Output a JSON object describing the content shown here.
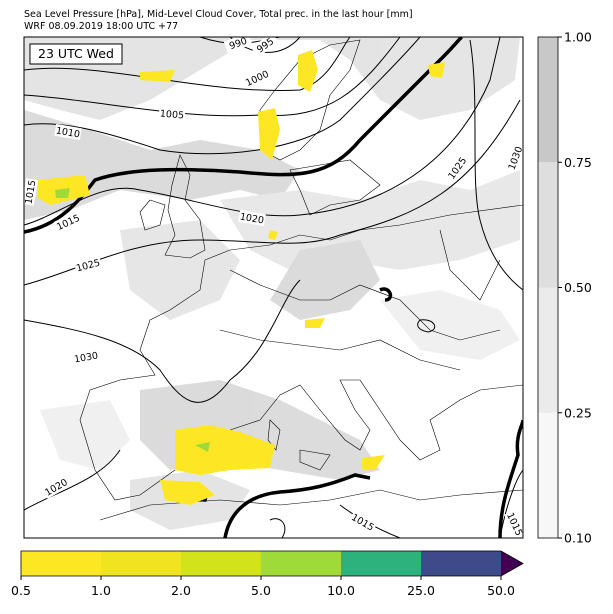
{
  "title": "Sea Level Pressure [hPa], Mid-Level Cloud Cover, Total prec. in the last hour [mm]",
  "subtitle": "WRF 08.09.2019 18:00 UTC +77",
  "time_label": "23 UTC Wed",
  "isobar_labels": [
    990,
    995,
    1000,
    1005,
    1010,
    1015,
    1015,
    1020,
    1025,
    1025,
    1030,
    1030,
    1020,
    1015,
    1015
  ],
  "cloud_colorbar": {
    "ticks": [
      {
        "value": 0.1,
        "label": "0.10"
      },
      {
        "value": 0.25,
        "label": "0.25"
      },
      {
        "value": 0.5,
        "label": "0.50"
      },
      {
        "value": 0.75,
        "label": "0.75"
      },
      {
        "value": 1,
        "label": "1.00"
      }
    ],
    "colors": [
      "#f7f7f7",
      "#ebebeb",
      "#dedede",
      "#c8c8c8"
    ]
  },
  "precip_colorbar": {
    "ticks": [
      0.5,
      {
        "value": 1,
        "label": "1.0"
      },
      {
        "value": 2,
        "label": "2.0"
      },
      {
        "value": 5,
        "label": "5.0"
      },
      {
        "value": 10,
        "label": "10.0"
      },
      {
        "value": 25,
        "label": "25.0"
      },
      {
        "value": 50,
        "label": "50.0"
      }
    ],
    "colors": [
      "#fde725",
      "#f0e31f",
      "#d2e21b",
      "#a0da39",
      "#2db27d",
      "#3e4a89",
      "#440154"
    ]
  }
}
